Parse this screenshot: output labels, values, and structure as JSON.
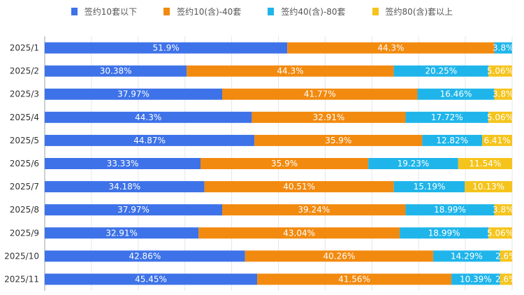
{
  "chart_data": {
    "type": "bar",
    "orientation": "horizontal",
    "stacked": true,
    "categories": [
      "2025/1",
      "2025/2",
      "2025/3",
      "2025/4",
      "2025/5",
      "2025/6",
      "2025/7",
      "2025/8",
      "2025/9",
      "2025/10",
      "2025/11"
    ],
    "series": [
      {
        "name": "签约10套以下",
        "color": "#3d72e8",
        "values": [
          51.9,
          30.38,
          37.97,
          44.3,
          44.87,
          33.33,
          34.18,
          37.97,
          32.91,
          42.86,
          45.45
        ]
      },
      {
        "name": "签约10(含)-40套",
        "color": "#f28a0f",
        "values": [
          44.3,
          44.3,
          41.77,
          32.91,
          35.9,
          35.9,
          40.51,
          39.24,
          43.04,
          40.26,
          41.56
        ]
      },
      {
        "name": "签约40(含)-80套",
        "color": "#1fb5ea",
        "values": [
          3.8,
          20.25,
          16.46,
          17.72,
          12.82,
          19.23,
          15.19,
          18.99,
          18.99,
          14.29,
          10.39
        ]
      },
      {
        "name": "签约80(含)套以上",
        "color": "#f5c41c",
        "values": [
          0,
          5.06,
          3.8,
          5.06,
          6.41,
          11.54,
          10.13,
          3.8,
          5.06,
          2.6,
          2.6
        ]
      }
    ],
    "xlim": [
      0,
      100
    ],
    "grid": true,
    "legend": "top",
    "value_suffix": "%"
  }
}
